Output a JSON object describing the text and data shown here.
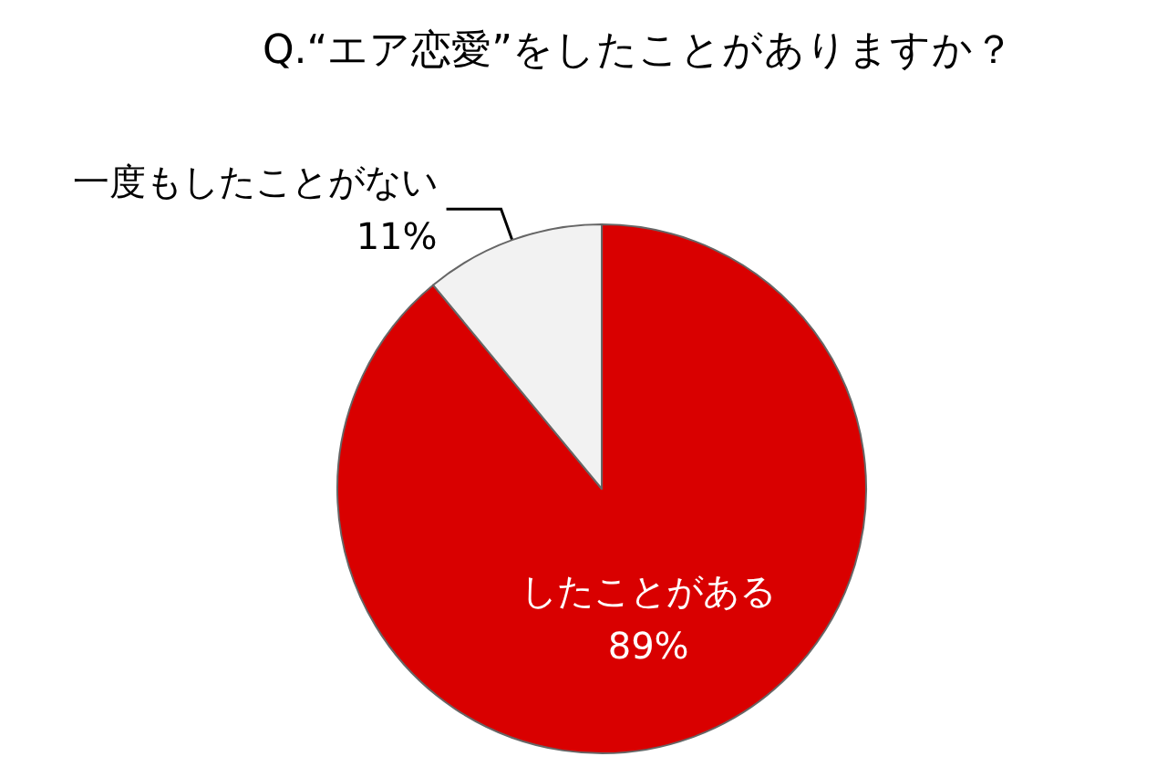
{
  "chart_data": {
    "type": "pie",
    "title": "Q.“エア恋愛”をしたことがありますか？",
    "categories": [
      "したことがある",
      "一度もしたことがない"
    ],
    "values": [
      89,
      11
    ],
    "value_labels": [
      "89%",
      "11%"
    ],
    "colors": [
      "#d90000",
      "#f2f2f2"
    ],
    "legend": false
  }
}
